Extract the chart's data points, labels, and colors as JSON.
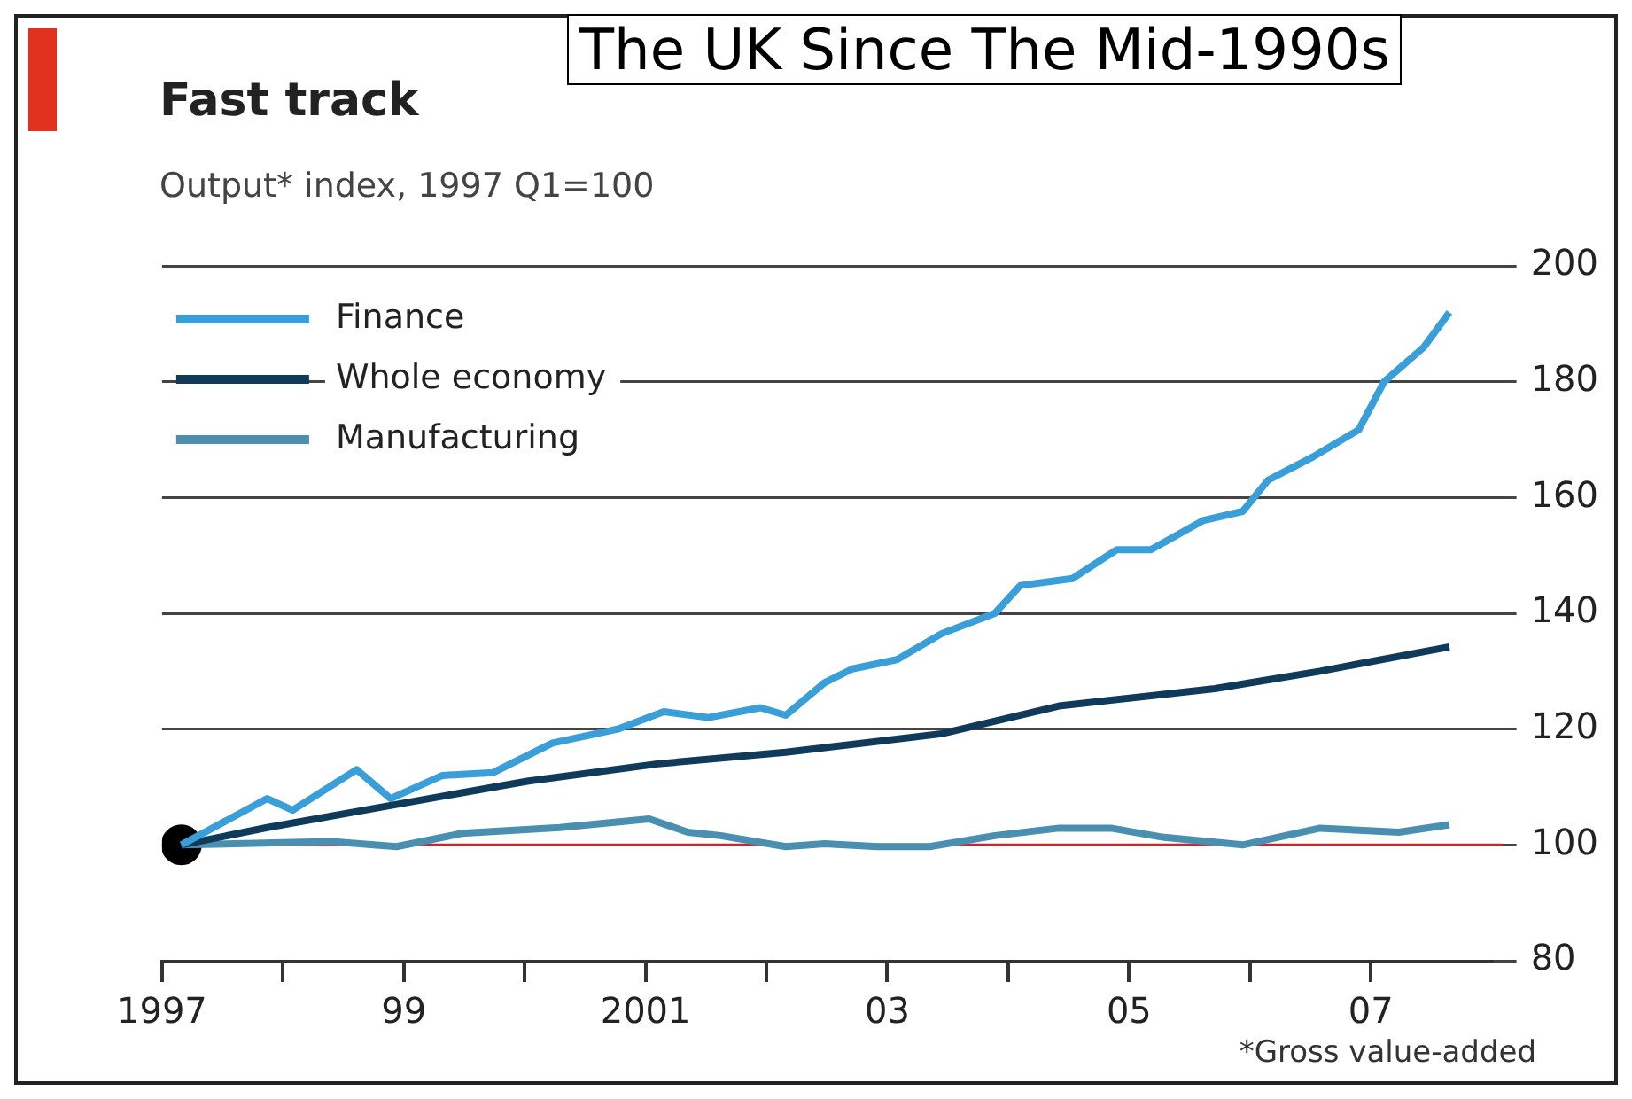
{
  "chart_data": {
    "type": "line",
    "title": "Fast track",
    "subtitle": "Output* index, 1997 Q1=100",
    "annotations": [
      "The UK Since The Mid-1990s",
      "*Gross value-added"
    ],
    "xlim": [
      1997,
      2008
    ],
    "xticks": [
      1997,
      {
        "value": 1998,
        "label": null
      },
      {
        "value": 1999,
        "label": "99"
      },
      {
        "value": 2000,
        "label": null
      },
      2001,
      {
        "value": 2002,
        "label": null
      },
      {
        "value": 2003,
        "label": "03"
      },
      {
        "value": 2004,
        "label": null
      },
      {
        "value": 2005,
        "label": "05"
      },
      {
        "value": 2006,
        "label": null
      },
      {
        "value": 2007,
        "label": "07"
      }
    ],
    "ylim": [
      80,
      200
    ],
    "yticks": [
      80,
      100,
      120,
      140,
      160,
      180,
      200
    ],
    "grid": "y",
    "legend": "top left",
    "marker": "none",
    "line_style": "solid",
    "ref_lines": [
      {
        "axis": "y",
        "value": 100,
        "color": "#c8282d"
      }
    ],
    "series": [
      {
        "name": "Finance",
        "color": "#3a9fd8",
        "x": [
          1997.16,
          1997.87,
          1998.08,
          1998.61,
          1998.89,
          1999.32,
          1999.74,
          2000.23,
          2000.77,
          2001.15,
          2001.52,
          2001.95,
          2002.16,
          2002.48,
          2002.71,
          2003.08,
          2003.45,
          2003.89,
          2004.1,
          2004.53,
          2004.9,
          2005.18,
          2005.61,
          2005.94,
          2006.15,
          2006.52,
          2006.9,
          2007.11,
          2007.44,
          2007.65
        ],
        "values": [
          100,
          108,
          106,
          113,
          108,
          112,
          112.5,
          117.6,
          120,
          123,
          122,
          123.7,
          122.4,
          128,
          130.4,
          132,
          136.5,
          140,
          144.8,
          146,
          151,
          151,
          156,
          157.6,
          163,
          167,
          171.7,
          180,
          186,
          192
        ]
      },
      {
        "name": "Whole economy",
        "color": "#0f3a5a",
        "x": [
          1997.16,
          1997.87,
          1998.94,
          2000.02,
          2001.1,
          2002.16,
          2003.45,
          2004.42,
          2005.71,
          2006.58,
          2007.65
        ],
        "values": [
          100,
          103,
          107,
          111,
          114,
          116,
          119.2,
          124,
          127,
          130,
          134.2
        ]
      },
      {
        "name": "Manufacturing",
        "color": "#4a8fb0",
        "x": [
          1997.16,
          1998.4,
          1998.94,
          1999.48,
          2000.29,
          2001.03,
          2001.35,
          2001.62,
          2002.16,
          2002.48,
          2002.92,
          2003.35,
          2003.89,
          2004.42,
          2004.85,
          2005.29,
          2005.94,
          2006.58,
          2007.23,
          2007.65
        ],
        "values": [
          100,
          100.6,
          99.7,
          102,
          103,
          104.5,
          102.2,
          101.6,
          99.7,
          100.2,
          99.7,
          99.7,
          101.6,
          102.9,
          102.9,
          101.3,
          100,
          102.9,
          102.2,
          103.5
        ]
      },
      {
        "type": "scatter",
        "color": "#000000",
        "marker": "circle",
        "x": [
          1997.16
        ],
        "values": [
          100
        ]
      }
    ]
  }
}
